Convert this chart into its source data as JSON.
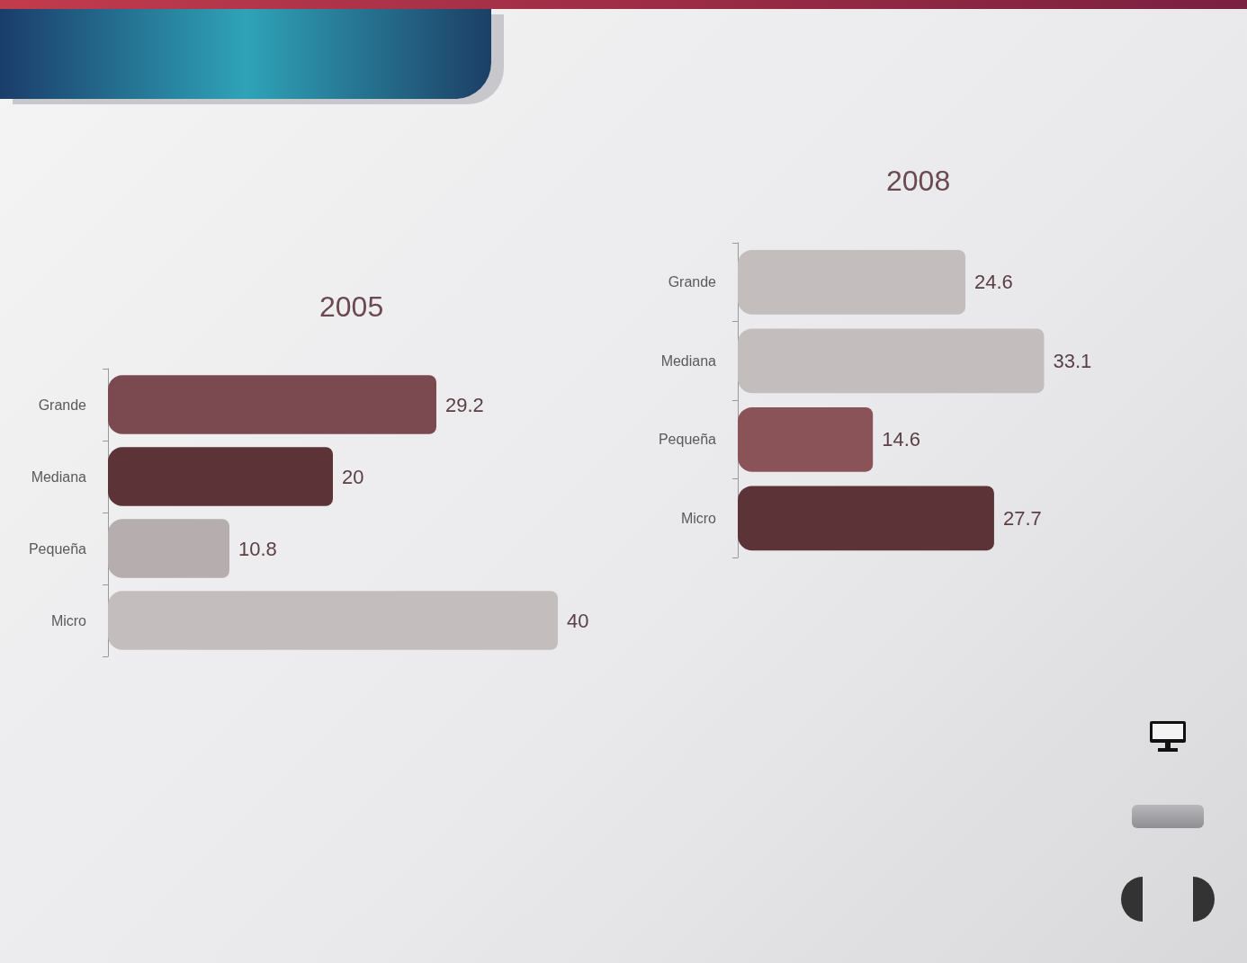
{
  "chart_data": [
    {
      "type": "bar",
      "orientation": "horizontal",
      "title": "2005",
      "categories": [
        "Grande",
        "Mediana",
        "Pequeña",
        "Micro"
      ],
      "values": [
        29.2,
        20,
        10.8,
        40
      ],
      "colors": [
        "#7b4a50",
        "#5c3337",
        "#b5adae",
        "#c3bdbe"
      ],
      "data_labels": true,
      "tick_labels": "y"
    },
    {
      "type": "bar",
      "orientation": "horizontal",
      "title": "2008",
      "categories": [
        "Grande",
        "Mediana",
        "Pequeña",
        "Micro"
      ],
      "values": [
        24.6,
        33.1,
        14.6,
        27.7
      ],
      "colors": [
        "#c3bdbe",
        "#c3bdbe",
        "#8a5358",
        "#5c3337"
      ],
      "data_labels": true,
      "tick_labels": "y"
    }
  ]
}
